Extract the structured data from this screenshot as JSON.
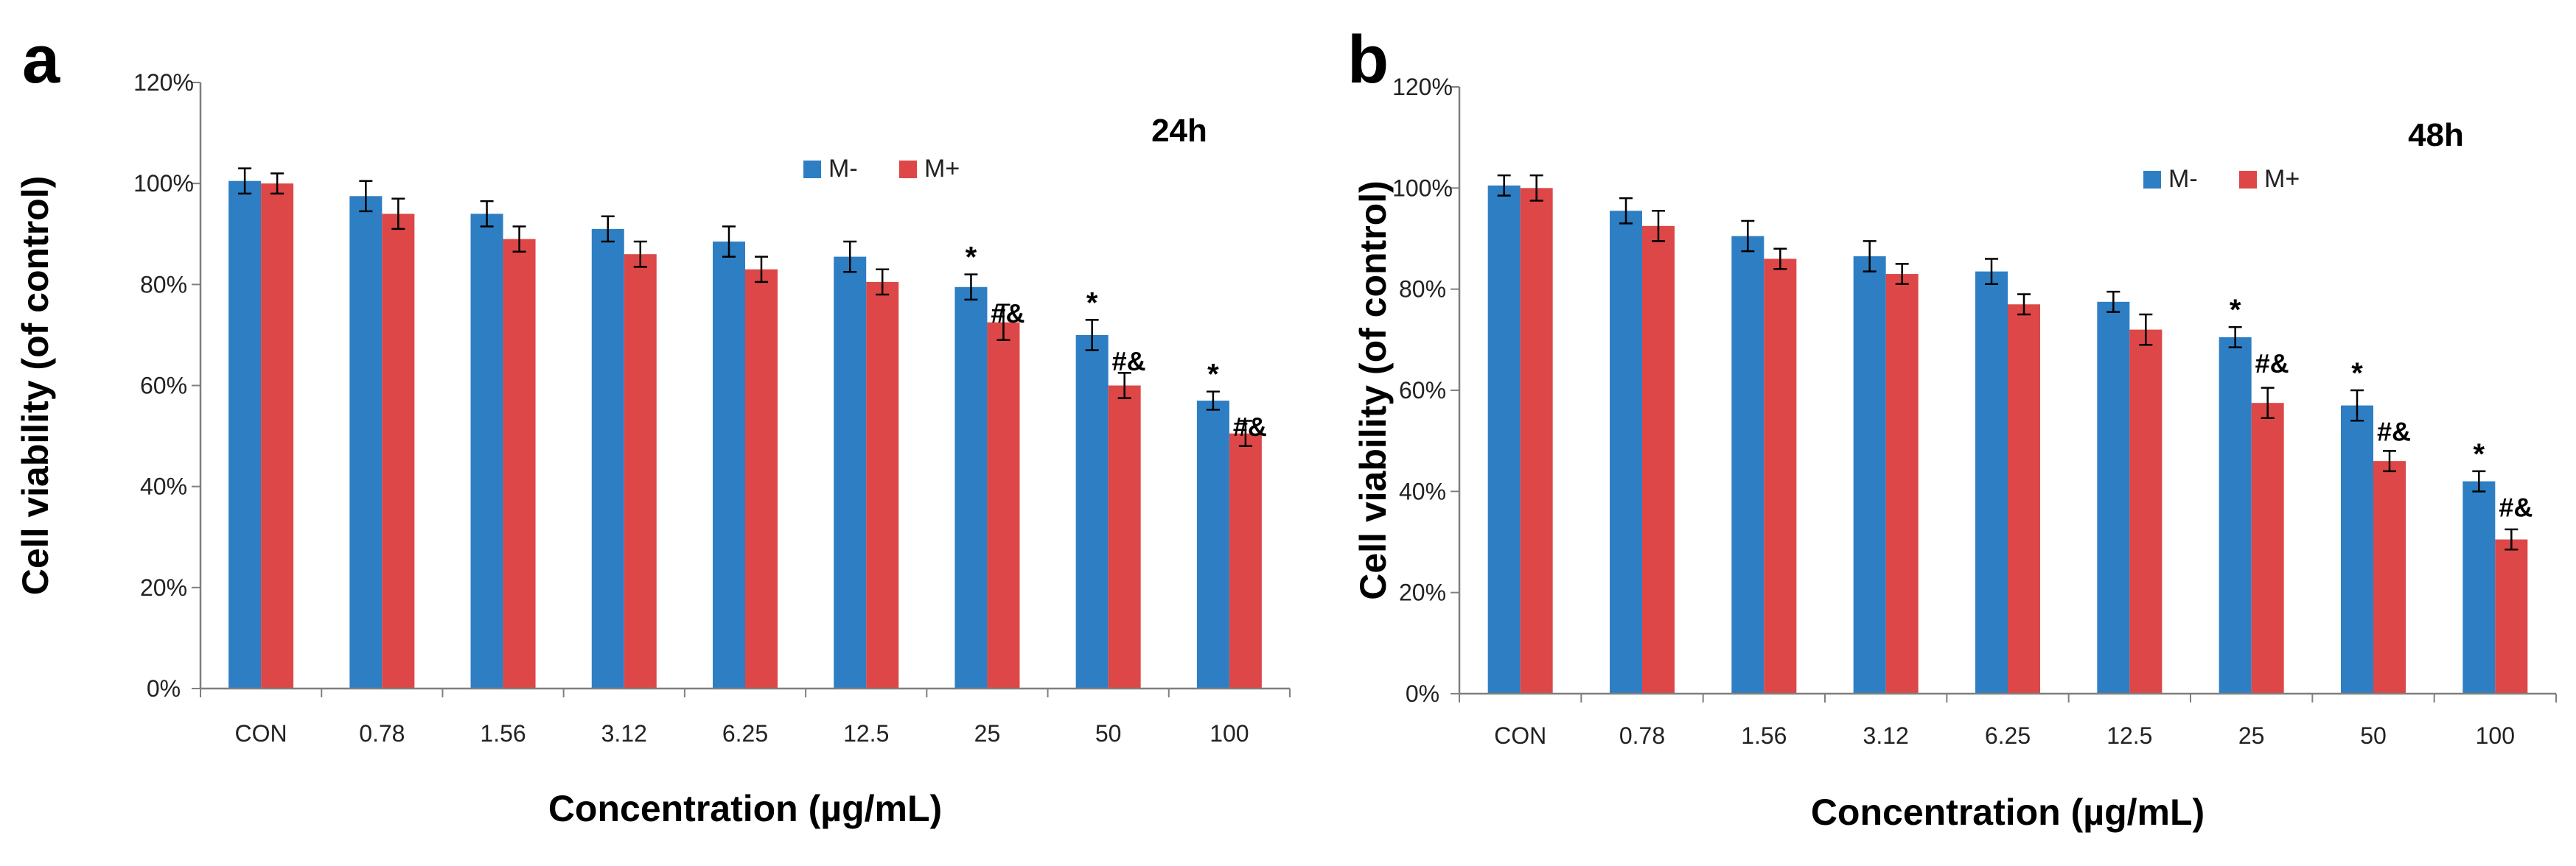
{
  "figure": {
    "colors": {
      "m_minus": "#2E7EC3",
      "m_plus": "#DD4747",
      "axis": "#7f7f7f",
      "text": "#000000"
    }
  },
  "chart_data": [
    {
      "type": "bar",
      "panel_label": "a",
      "time_label": "24h",
      "xlabel": "Concentration (µg/mL)",
      "ylabel": "Cell viability (of control)",
      "categories": [
        "CON",
        "0.78",
        "1.56",
        "3.12",
        "6.25",
        "12.5",
        "25",
        "50",
        "100"
      ],
      "ylim": [
        0,
        120
      ],
      "y_ticks": [
        "0%",
        "20%",
        "40%",
        "60%",
        "80%",
        "100%",
        "120%"
      ],
      "y_unit": "%",
      "grid": false,
      "legend_position": "top-right",
      "series": [
        {
          "name": "M-",
          "values": [
            100.5,
            97.5,
            94,
            91,
            88.5,
            85.5,
            79.5,
            70,
            57
          ],
          "errors": [
            2.5,
            3,
            2.5,
            2.5,
            3,
            3,
            2.5,
            3,
            1.8
          ]
        },
        {
          "name": "M+",
          "values": [
            100,
            94,
            89,
            86,
            83,
            80.5,
            72.5,
            60,
            50.5
          ],
          "errors": [
            2,
            3,
            2.5,
            2.5,
            2.5,
            2.5,
            3.5,
            2.5,
            2.5
          ]
        }
      ],
      "annotations": [
        {
          "category": "25",
          "series": "M-",
          "text": "*"
        },
        {
          "category": "25",
          "series": "M+",
          "text": "#&"
        },
        {
          "category": "50",
          "series": "M-",
          "text": "*"
        },
        {
          "category": "50",
          "series": "M+",
          "text": "#&"
        },
        {
          "category": "100",
          "series": "M-",
          "text": "*"
        },
        {
          "category": "100",
          "series": "M+",
          "text": "#&"
        }
      ]
    },
    {
      "type": "bar",
      "panel_label": "b",
      "time_label": "48h",
      "xlabel": "Concentration (µg/mL)",
      "ylabel": "Cell viability (of control)",
      "categories": [
        "CON",
        "0.78",
        "1.56",
        "3.12",
        "6.25",
        "12.5",
        "25",
        "50",
        "100"
      ],
      "ylim": [
        0,
        120
      ],
      "y_ticks": [
        "0%",
        "20%",
        "40%",
        "60%",
        "80%",
        "100%",
        "120%"
      ],
      "y_unit": "%",
      "grid": false,
      "legend_position": "top-right",
      "series": [
        {
          "name": "M-",
          "values": [
            100.5,
            95.5,
            90.5,
            86.5,
            83.5,
            77.5,
            70.5,
            57,
            42
          ],
          "errors": [
            2,
            2.5,
            3,
            3,
            2.5,
            2,
            2,
            3,
            2
          ]
        },
        {
          "name": "M+",
          "values": [
            100,
            92.5,
            86,
            83,
            77,
            72,
            57.5,
            46,
            30.5
          ],
          "errors": [
            2.5,
            3,
            2,
            2,
            2,
            3,
            3,
            2,
            2
          ]
        }
      ],
      "annotations": [
        {
          "category": "25",
          "series": "M-",
          "text": "*"
        },
        {
          "category": "25",
          "series": "M+",
          "text": "#&"
        },
        {
          "category": "50",
          "series": "M-",
          "text": "*"
        },
        {
          "category": "50",
          "series": "M+",
          "text": "#&"
        },
        {
          "category": "100",
          "series": "M-",
          "text": "*"
        },
        {
          "category": "100",
          "series": "M+",
          "text": "#&"
        }
      ]
    }
  ]
}
